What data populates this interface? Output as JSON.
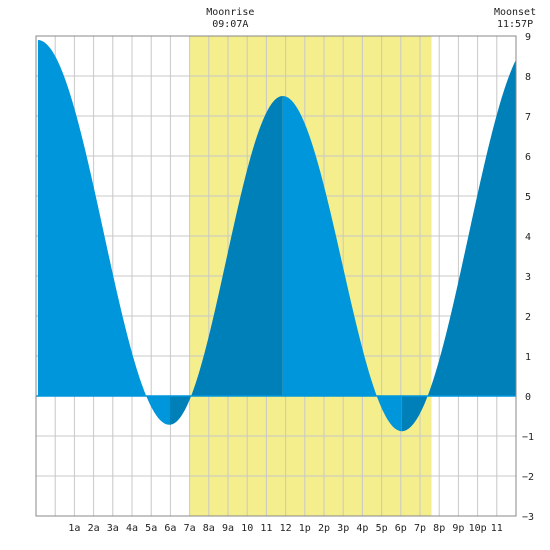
{
  "chart_data": {
    "type": "area",
    "title": "",
    "xlabel": "",
    "ylabel": "",
    "x_range_hours": [
      -1,
      24
    ],
    "ylim": [
      -3,
      9
    ],
    "grid": true,
    "x_ticks": [
      {
        "h": 1,
        "label": "1a"
      },
      {
        "h": 2,
        "label": "2a"
      },
      {
        "h": 3,
        "label": "3a"
      },
      {
        "h": 4,
        "label": "4a"
      },
      {
        "h": 5,
        "label": "5a"
      },
      {
        "h": 6,
        "label": "6a"
      },
      {
        "h": 7,
        "label": "7a"
      },
      {
        "h": 8,
        "label": "8a"
      },
      {
        "h": 9,
        "label": "9a"
      },
      {
        "h": 10,
        "label": "10"
      },
      {
        "h": 11,
        "label": "11"
      },
      {
        "h": 12,
        "label": "12"
      },
      {
        "h": 13,
        "label": "1p"
      },
      {
        "h": 14,
        "label": "2p"
      },
      {
        "h": 15,
        "label": "3p"
      },
      {
        "h": 16,
        "label": "4p"
      },
      {
        "h": 17,
        "label": "5p"
      },
      {
        "h": 18,
        "label": "6p"
      },
      {
        "h": 19,
        "label": "7p"
      },
      {
        "h": 20,
        "label": "8p"
      },
      {
        "h": 21,
        "label": "9p"
      },
      {
        "h": 22,
        "label": "10p"
      },
      {
        "h": 23,
        "label": "11"
      }
    ],
    "y_ticks": [
      -3,
      -2,
      -1,
      0,
      1,
      2,
      3,
      4,
      5,
      6,
      7,
      8,
      9
    ],
    "daylight": {
      "start_hour": 7.0,
      "end_hour": 19.6
    },
    "extremes": [
      {
        "hour": -0.9,
        "height": 8.9,
        "kind": "high"
      },
      {
        "hour": 5.95,
        "height": -0.72,
        "kind": "low"
      },
      {
        "hour": 11.85,
        "height": 7.5,
        "kind": "high"
      },
      {
        "hour": 18.05,
        "height": -0.88,
        "kind": "low"
      },
      {
        "hour": 25.0,
        "height": 8.9,
        "kind": "high"
      }
    ],
    "annotations": [
      {
        "label": "Moonrise",
        "time": "09:07A",
        "hour": 9.12
      },
      {
        "label": "Moonset",
        "time": "11:57P",
        "hour": 23.95
      }
    ],
    "colors": {
      "falling": "#0096dc",
      "rising": "#0080b8",
      "daylight": "#f5ee8c",
      "grid": "#c8c8c8",
      "background": "#ffffff"
    }
  }
}
